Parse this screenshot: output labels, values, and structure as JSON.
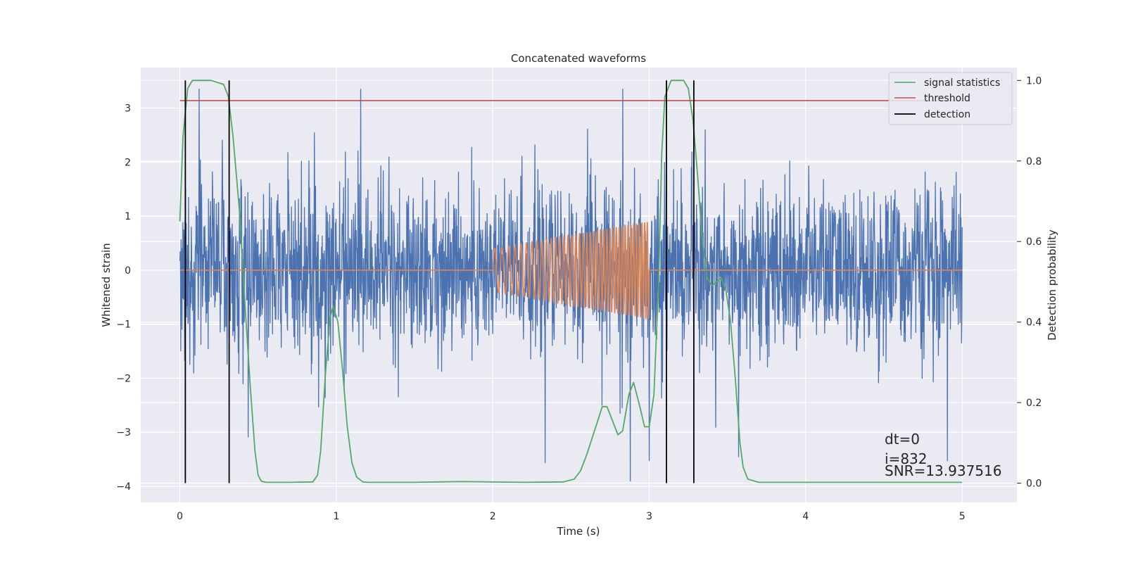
{
  "chart_data": {
    "type": "line",
    "title": "Concatenated waveforms",
    "xlabel": "Time (s)",
    "ylabel": "Whitened strain",
    "y2label": "Detection probability",
    "xlim": [
      -0.25,
      5.35
    ],
    "ylim": [
      -4.3,
      3.75
    ],
    "y2lim": [
      -0.048,
      1.032
    ],
    "xticks": [
      0,
      1,
      2,
      3,
      4,
      5
    ],
    "xtick_labels": [
      "0",
      "1",
      "2",
      "3",
      "4",
      "5"
    ],
    "yticks": [
      -4,
      -3,
      -2,
      -1,
      0,
      1,
      2,
      3
    ],
    "ytick_labels": [
      "−4",
      "−3",
      "−2",
      "−1",
      "0",
      "1",
      "2",
      "3"
    ],
    "y2ticks": [
      0.0,
      0.2,
      0.4,
      0.6,
      0.8,
      1.0
    ],
    "y2tick_labels": [
      "0.0",
      "0.2",
      "0.4",
      "0.6",
      "0.8",
      "1.0"
    ],
    "grid": true,
    "legend_position": "top-right",
    "colors": {
      "strain": "#4c72b0",
      "template": "#dd8452",
      "signal_statistics": "#55a868",
      "threshold": "#c44e52",
      "detection": "#000000",
      "plot_bg": "#eaeaf2",
      "grid": "#ffffff"
    },
    "series": [
      {
        "name": "signal statistics",
        "axis": "right",
        "x": [
          0.0,
          0.02,
          0.05,
          0.08,
          0.12,
          0.2,
          0.28,
          0.31,
          0.34,
          0.38,
          0.42,
          0.45,
          0.48,
          0.5,
          0.52,
          0.55,
          0.7,
          0.85,
          0.88,
          0.9,
          0.93,
          0.96,
          0.98,
          1.01,
          1.04,
          1.07,
          1.1,
          1.13,
          1.17,
          1.2,
          1.5,
          1.8,
          2.2,
          2.45,
          2.52,
          2.56,
          2.6,
          2.65,
          2.7,
          2.73,
          2.77,
          2.8,
          2.83,
          2.87,
          2.9,
          2.94,
          2.97,
          3.0,
          3.03,
          3.06,
          3.08,
          3.1,
          3.14,
          3.18,
          3.22,
          3.25,
          3.28,
          3.31,
          3.34,
          3.37,
          3.4,
          3.43,
          3.46,
          3.49,
          3.52,
          3.55,
          3.58,
          3.6,
          3.63,
          3.7,
          4.0,
          4.5,
          5.0
        ],
        "values": [
          0.65,
          0.86,
          0.98,
          1.0,
          1.0,
          1.0,
          0.99,
          0.96,
          0.86,
          0.68,
          0.42,
          0.24,
          0.08,
          0.02,
          0.005,
          0.002,
          0.002,
          0.003,
          0.02,
          0.08,
          0.27,
          0.41,
          0.44,
          0.4,
          0.28,
          0.14,
          0.05,
          0.015,
          0.003,
          0.002,
          0.002,
          0.004,
          0.002,
          0.003,
          0.01,
          0.03,
          0.07,
          0.13,
          0.19,
          0.19,
          0.15,
          0.12,
          0.13,
          0.22,
          0.25,
          0.19,
          0.14,
          0.14,
          0.22,
          0.5,
          0.82,
          0.96,
          1.0,
          1.0,
          1.0,
          0.98,
          0.9,
          0.76,
          0.6,
          0.51,
          0.49,
          0.5,
          0.51,
          0.48,
          0.4,
          0.26,
          0.1,
          0.04,
          0.01,
          0.002,
          0.002,
          0.002,
          0.002
        ]
      },
      {
        "name": "threshold",
        "axis": "right",
        "x": [
          0.0,
          5.0
        ],
        "values": [
          0.95,
          0.95
        ]
      },
      {
        "name": "detection",
        "axis": "right",
        "type": "vlines",
        "x": [
          0.035,
          0.315,
          3.11,
          3.285
        ],
        "range": [
          0.0,
          1.0
        ]
      }
    ],
    "strain": {
      "t_start": 0.0,
      "t_end": 5.0,
      "noise_std": 0.85
    },
    "template": {
      "t_start": 2.0,
      "t_end": 3.0,
      "amp_start": 0.4,
      "amp_end": 0.9,
      "freq_start": 20,
      "freq_end": 60
    },
    "annotations": [
      "dt=0",
      "i=832",
      "SNR=13.937516"
    ]
  }
}
